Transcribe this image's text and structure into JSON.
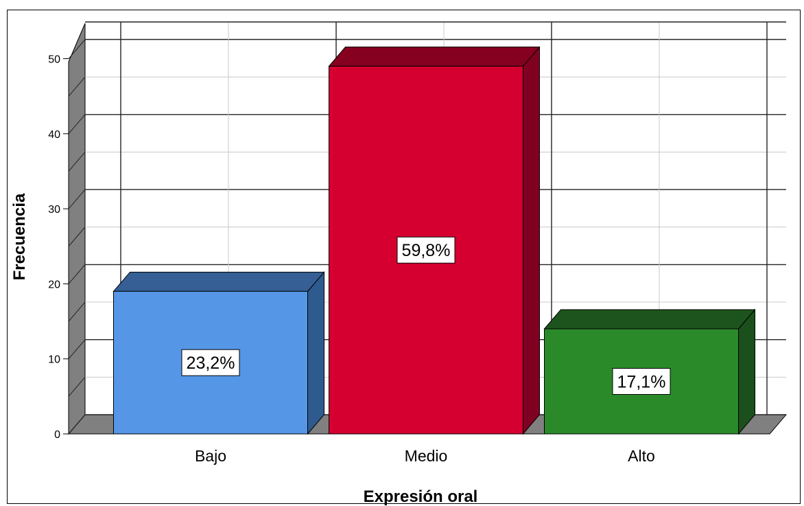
{
  "chart_data": {
    "type": "bar",
    "style": "3d",
    "xlabel": "Expresión oral",
    "ylabel": "Frecuencia",
    "categories": [
      "Bajo",
      "Medio",
      "Alto"
    ],
    "values": [
      19,
      49,
      14
    ],
    "data_labels": [
      "23,2%",
      "59,8%",
      "17,1%"
    ],
    "ylim": [
      0,
      50
    ],
    "yticks": [
      0,
      10,
      20,
      30,
      40,
      50
    ],
    "grid": true,
    "colors": [
      "#5596e6",
      "#d50030",
      "#2a8a2a"
    ],
    "side_colors": [
      "#2f5a8e",
      "#7f0020",
      "#1b4f1b"
    ],
    "top_colors": [
      "#355f95",
      "#860020",
      "#1d531d"
    ]
  }
}
